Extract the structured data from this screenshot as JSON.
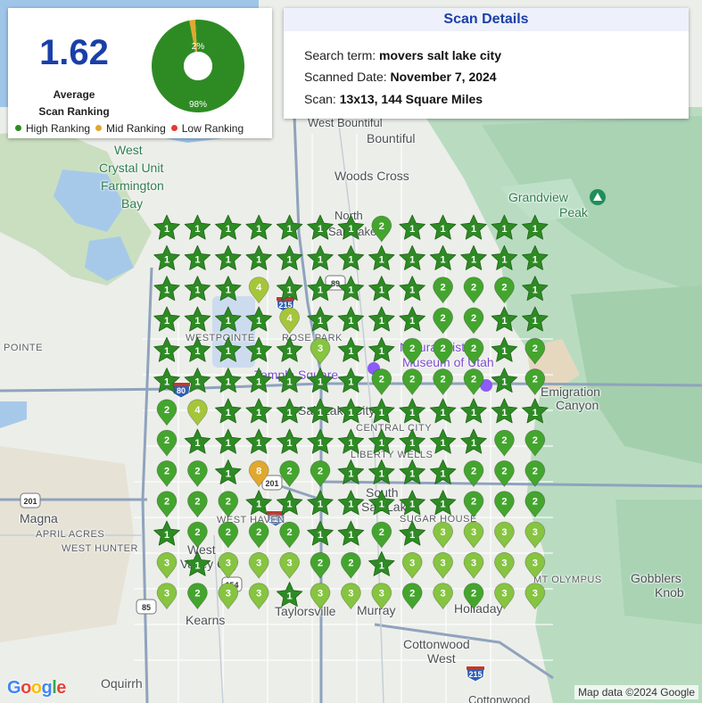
{
  "summary": {
    "average_value": "1.62",
    "average_label_line1": "Average",
    "average_label_line2": "Scan Ranking",
    "donut": {
      "segments": [
        {
          "label": "98%",
          "fraction": 0.98,
          "color": "#2e8b24"
        },
        {
          "label": "2%",
          "fraction": 0.02,
          "color": "#e0a82e"
        }
      ],
      "hole_color": "#ffffff"
    },
    "legend": [
      {
        "label": "High Ranking",
        "color": "#2e8b24"
      },
      {
        "label": "Mid Ranking",
        "color": "#e0a82e"
      },
      {
        "label": "Low Ranking",
        "color": "#e53935"
      }
    ]
  },
  "details": {
    "title": "Scan Details",
    "search_term_label": "Search term:",
    "search_term_value": "movers salt lake city",
    "scanned_date_label": "Scanned Date:",
    "scanned_date_value": "November 7, 2024",
    "scan_label": "Scan:",
    "scan_value": "13x13, 144 Square Miles"
  },
  "grid": {
    "rows": 13,
    "cols": 13,
    "marker_colors": {
      "1": "#2e8b24",
      "2": "#44a52e",
      "3": "#86c441",
      "4": "#a5c63b",
      "8": "#e0a82e"
    },
    "rankings": [
      [
        1,
        1,
        1,
        1,
        1,
        1,
        1,
        2,
        1,
        1,
        1,
        1,
        1
      ],
      [
        1,
        1,
        1,
        1,
        1,
        1,
        1,
        1,
        1,
        1,
        1,
        1,
        1
      ],
      [
        1,
        1,
        1,
        4,
        1,
        1,
        1,
        1,
        1,
        2,
        2,
        2,
        1
      ],
      [
        1,
        1,
        1,
        1,
        4,
        1,
        1,
        1,
        1,
        2,
        2,
        1,
        1
      ],
      [
        1,
        1,
        1,
        1,
        1,
        3,
        1,
        1,
        2,
        2,
        2,
        1,
        2
      ],
      [
        1,
        1,
        1,
        1,
        1,
        1,
        1,
        2,
        2,
        2,
        2,
        1,
        2
      ],
      [
        2,
        4,
        1,
        1,
        1,
        1,
        1,
        1,
        1,
        1,
        1,
        1,
        1
      ],
      [
        2,
        1,
        1,
        1,
        1,
        1,
        1,
        1,
        1,
        1,
        1,
        2,
        2
      ],
      [
        2,
        2,
        1,
        8,
        2,
        2,
        1,
        1,
        1,
        1,
        2,
        2,
        2
      ],
      [
        2,
        2,
        2,
        1,
        1,
        1,
        1,
        1,
        1,
        1,
        2,
        2,
        2
      ],
      [
        1,
        2,
        2,
        2,
        2,
        1,
        1,
        2,
        1,
        3,
        3,
        3,
        3
      ],
      [
        3,
        1,
        3,
        3,
        3,
        2,
        2,
        1,
        3,
        3,
        3,
        3,
        3
      ],
      [
        3,
        2,
        3,
        3,
        1,
        3,
        3,
        3,
        2,
        3,
        2,
        3,
        3
      ]
    ]
  },
  "map_labels": [
    {
      "text": "West",
      "cls": "park"
    },
    {
      "text": "Crystal Unit",
      "cls": "park"
    },
    {
      "text": "Farmington",
      "cls": "park"
    },
    {
      "text": "Bay",
      "cls": "park"
    },
    {
      "text": "Bountiful",
      "cls": "big"
    },
    {
      "text": "Woods Cross",
      "cls": "big"
    },
    {
      "text": "West Bountiful",
      "cls": "med"
    },
    {
      "text": "North",
      "cls": "med"
    },
    {
      "text": "Salt Lake",
      "cls": "med"
    },
    {
      "text": "Grandview",
      "cls": "park"
    },
    {
      "text": "Peak",
      "cls": "park"
    },
    {
      "text": "POINTE",
      "cls": "sm"
    },
    {
      "text": "WESTPOINTE",
      "cls": "sm"
    },
    {
      "text": "ROSE PARK",
      "cls": "sm"
    },
    {
      "text": "Temple Square",
      "cls": "poi"
    },
    {
      "text": "Natural History",
      "cls": "poi"
    },
    {
      "text": "Museum of Utah",
      "cls": "poi"
    },
    {
      "text": "Emigration",
      "cls": "big"
    },
    {
      "text": "Canyon",
      "cls": "big"
    },
    {
      "text": "Salt Lake City",
      "cls": "big"
    },
    {
      "text": "CENTRAL CITY",
      "cls": "sm"
    },
    {
      "text": "LIBERTY WELLS",
      "cls": "sm"
    },
    {
      "text": "South",
      "cls": "big"
    },
    {
      "text": "Salt Lake",
      "cls": "big"
    },
    {
      "text": "SUGAR HOUSE",
      "cls": "sm"
    },
    {
      "text": "Magna",
      "cls": "big"
    },
    {
      "text": "APRIL ACRES",
      "cls": "sm"
    },
    {
      "text": "WEST HUNTER",
      "cls": "sm"
    },
    {
      "text": "WEST HAVEN",
      "cls": "sm"
    },
    {
      "text": "West",
      "cls": "big"
    },
    {
      "text": "Valley City",
      "cls": "big"
    },
    {
      "text": "MT OLYMPUS",
      "cls": "sm"
    },
    {
      "text": "Gobblers",
      "cls": "big"
    },
    {
      "text": "Knob",
      "cls": "big"
    },
    {
      "text": "Kearns",
      "cls": "big"
    },
    {
      "text": "Taylorsville",
      "cls": "big"
    },
    {
      "text": "Murray",
      "cls": "big"
    },
    {
      "text": "Holladay",
      "cls": "big"
    },
    {
      "text": "Cottonwood",
      "cls": "big"
    },
    {
      "text": "West",
      "cls": "big"
    },
    {
      "text": "Oquirrh",
      "cls": "big"
    },
    {
      "text": "Cottonwood",
      "cls": "med"
    }
  ],
  "highway_shields": [
    "89",
    "215",
    "80",
    "201",
    "201",
    "215",
    "85",
    "154",
    "215"
  ],
  "google_logo": [
    "G",
    "o",
    "o",
    "g",
    "l",
    "e"
  ],
  "google_logo_colors": [
    "#4285f4",
    "#ea4335",
    "#fbbc05",
    "#4285f4",
    "#34a853",
    "#ea4335"
  ],
  "attribution": "Map data ©2024 Google"
}
